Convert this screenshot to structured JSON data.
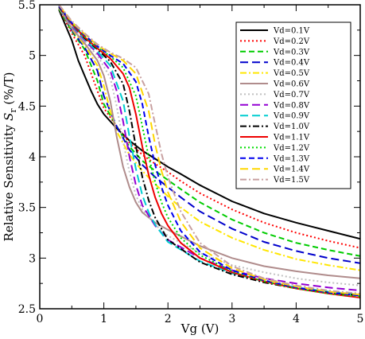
{
  "chart_data": {
    "type": "line",
    "title": "",
    "xlabel": "Vg (V)",
    "ylabel_main": "Relative Sensitivity ",
    "ylabel_symbol": "S",
    "ylabel_sub": "r",
    "ylabel_unit": " (%/T)",
    "xlim": [
      0,
      5
    ],
    "ylim": [
      2.5,
      5.5
    ],
    "xticks": [
      0,
      1,
      2,
      3,
      4,
      5
    ],
    "yticks": [
      2.5,
      3,
      3.5,
      4,
      4.5,
      5,
      5.5
    ],
    "xtick_labels": [
      "0",
      "1",
      "2",
      "3",
      "4",
      "5"
    ],
    "ytick_labels": [
      "2.5",
      "3",
      "3.5",
      "4",
      "4.5",
      "5",
      "5.5"
    ],
    "grid": false,
    "legend_position": "top-right",
    "series": [
      {
        "name": "Vd=0.1V",
        "color": "#000000",
        "dash": "solid",
        "points": [
          [
            0.3,
            5.45
          ],
          [
            0.4,
            5.3
          ],
          [
            0.5,
            5.15
          ],
          [
            0.6,
            4.95
          ],
          [
            0.7,
            4.8
          ],
          [
            0.8,
            4.65
          ],
          [
            0.9,
            4.52
          ],
          [
            1.0,
            4.42
          ],
          [
            1.2,
            4.28
          ],
          [
            1.4,
            4.16
          ],
          [
            1.6,
            4.06
          ],
          [
            1.8,
            3.98
          ],
          [
            2.0,
            3.9
          ],
          [
            2.2,
            3.83
          ],
          [
            2.5,
            3.72
          ],
          [
            3.0,
            3.56
          ],
          [
            3.5,
            3.44
          ],
          [
            4.0,
            3.35
          ],
          [
            4.5,
            3.27
          ],
          [
            5.0,
            3.19
          ]
        ]
      },
      {
        "name": "Vd=0.2V",
        "color": "#ff0000",
        "dash": "dotted",
        "points": [
          [
            0.3,
            5.46
          ],
          [
            0.5,
            5.22
          ],
          [
            0.7,
            5.0
          ],
          [
            0.9,
            4.65
          ],
          [
            1.0,
            4.48
          ],
          [
            1.2,
            4.3
          ],
          [
            1.4,
            4.14
          ],
          [
            1.6,
            4.02
          ],
          [
            1.8,
            3.93
          ],
          [
            2.0,
            3.85
          ],
          [
            2.2,
            3.76
          ],
          [
            2.5,
            3.64
          ],
          [
            3.0,
            3.48
          ],
          [
            3.5,
            3.35
          ],
          [
            4.0,
            3.25
          ],
          [
            4.5,
            3.17
          ],
          [
            5.0,
            3.1
          ]
        ]
      },
      {
        "name": "Vd=0.3V",
        "color": "#00cc00",
        "dash": "dashed",
        "points": [
          [
            0.3,
            5.46
          ],
          [
            0.5,
            5.24
          ],
          [
            0.7,
            5.06
          ],
          [
            0.9,
            4.75
          ],
          [
            1.0,
            4.52
          ],
          [
            1.2,
            4.3
          ],
          [
            1.4,
            4.1
          ],
          [
            1.6,
            3.96
          ],
          [
            1.8,
            3.86
          ],
          [
            2.0,
            3.77
          ],
          [
            2.2,
            3.68
          ],
          [
            2.5,
            3.55
          ],
          [
            3.0,
            3.38
          ],
          [
            3.5,
            3.25
          ],
          [
            4.0,
            3.15
          ],
          [
            4.5,
            3.08
          ],
          [
            5.0,
            3.02
          ]
        ]
      },
      {
        "name": "Vd=0.4V",
        "color": "#0000cc",
        "dash": "longdash",
        "points": [
          [
            0.3,
            5.47
          ],
          [
            0.5,
            5.25
          ],
          [
            0.7,
            5.08
          ],
          [
            0.9,
            4.85
          ],
          [
            1.0,
            4.6
          ],
          [
            1.2,
            4.3
          ],
          [
            1.4,
            4.07
          ],
          [
            1.6,
            3.92
          ],
          [
            1.8,
            3.8
          ],
          [
            2.0,
            3.7
          ],
          [
            2.2,
            3.6
          ],
          [
            2.5,
            3.46
          ],
          [
            3.0,
            3.29
          ],
          [
            3.5,
            3.16
          ],
          [
            4.0,
            3.07
          ],
          [
            4.5,
            3.0
          ],
          [
            5.0,
            2.95
          ]
        ]
      },
      {
        "name": "Vd=0.5V",
        "color": "#ffe600",
        "dash": "dashdot",
        "points": [
          [
            0.3,
            5.47
          ],
          [
            0.5,
            5.26
          ],
          [
            0.7,
            5.1
          ],
          [
            0.9,
            4.9
          ],
          [
            1.0,
            4.7
          ],
          [
            1.1,
            4.45
          ],
          [
            1.2,
            4.25
          ],
          [
            1.4,
            4.02
          ],
          [
            1.6,
            3.86
          ],
          [
            1.8,
            3.73
          ],
          [
            2.0,
            3.61
          ],
          [
            2.2,
            3.5
          ],
          [
            2.5,
            3.36
          ],
          [
            3.0,
            3.2
          ],
          [
            3.5,
            3.08
          ],
          [
            4.0,
            2.99
          ],
          [
            4.5,
            2.93
          ],
          [
            5.0,
            2.88
          ]
        ]
      },
      {
        "name": "Vd=0.6V",
        "color": "#b08c8c",
        "dash": "solid",
        "points": [
          [
            0.3,
            5.47
          ],
          [
            0.5,
            5.27
          ],
          [
            0.7,
            5.12
          ],
          [
            0.9,
            4.95
          ],
          [
            1.0,
            4.8
          ],
          [
            1.1,
            4.55
          ],
          [
            1.2,
            4.2
          ],
          [
            1.3,
            3.9
          ],
          [
            1.4,
            3.7
          ],
          [
            1.5,
            3.55
          ],
          [
            1.6,
            3.45
          ],
          [
            1.8,
            3.35
          ],
          [
            2.0,
            3.28
          ],
          [
            2.5,
            3.12
          ],
          [
            3.0,
            3.0
          ],
          [
            3.5,
            2.92
          ],
          [
            4.0,
            2.87
          ],
          [
            4.5,
            2.83
          ],
          [
            5.0,
            2.8
          ]
        ]
      },
      {
        "name": "Vd=0.7V",
        "color": "#c0c0c0",
        "dash": "dotted",
        "points": [
          [
            0.3,
            5.48
          ],
          [
            0.5,
            5.28
          ],
          [
            0.7,
            5.14
          ],
          [
            0.9,
            5.0
          ],
          [
            1.1,
            4.78
          ],
          [
            1.2,
            4.5
          ],
          [
            1.3,
            4.15
          ],
          [
            1.4,
            3.85
          ],
          [
            1.5,
            3.62
          ],
          [
            1.6,
            3.48
          ],
          [
            1.8,
            3.33
          ],
          [
            2.0,
            3.22
          ],
          [
            2.5,
            3.05
          ],
          [
            3.0,
            2.93
          ],
          [
            3.5,
            2.86
          ],
          [
            4.0,
            2.8
          ],
          [
            4.5,
            2.76
          ],
          [
            5.0,
            2.73
          ]
        ]
      },
      {
        "name": "Vd=0.8V",
        "color": "#9400d3",
        "dash": "longdash",
        "points": [
          [
            0.3,
            5.48
          ],
          [
            0.5,
            5.29
          ],
          [
            0.7,
            5.15
          ],
          [
            0.9,
            5.02
          ],
          [
            1.1,
            4.85
          ],
          [
            1.2,
            4.65
          ],
          [
            1.3,
            4.35
          ],
          [
            1.4,
            4.0
          ],
          [
            1.5,
            3.72
          ],
          [
            1.6,
            3.52
          ],
          [
            1.8,
            3.32
          ],
          [
            2.0,
            3.18
          ],
          [
            2.5,
            3.0
          ],
          [
            3.0,
            2.88
          ],
          [
            3.5,
            2.8
          ],
          [
            4.0,
            2.75
          ],
          [
            4.5,
            2.71
          ],
          [
            5.0,
            2.68
          ]
        ]
      },
      {
        "name": "Vd=0.9V",
        "color": "#00ced1",
        "dash": "longdash",
        "points": [
          [
            0.3,
            5.48
          ],
          [
            0.5,
            5.3
          ],
          [
            0.7,
            5.16
          ],
          [
            0.9,
            5.04
          ],
          [
            1.1,
            4.9
          ],
          [
            1.3,
            4.55
          ],
          [
            1.4,
            4.2
          ],
          [
            1.5,
            3.88
          ],
          [
            1.6,
            3.62
          ],
          [
            1.7,
            3.45
          ],
          [
            1.8,
            3.33
          ],
          [
            2.0,
            3.16
          ],
          [
            2.5,
            2.97
          ],
          [
            3.0,
            2.85
          ],
          [
            3.5,
            2.77
          ],
          [
            4.0,
            2.71
          ],
          [
            4.5,
            2.67
          ],
          [
            5.0,
            2.64
          ]
        ]
      },
      {
        "name": "Vd=1.0V",
        "color": "#000000",
        "dash": "dashdot",
        "points": [
          [
            0.3,
            5.48
          ],
          [
            0.5,
            5.31
          ],
          [
            0.7,
            5.17
          ],
          [
            0.9,
            5.06
          ],
          [
            1.1,
            4.94
          ],
          [
            1.3,
            4.72
          ],
          [
            1.4,
            4.45
          ],
          [
            1.5,
            4.1
          ],
          [
            1.6,
            3.8
          ],
          [
            1.7,
            3.57
          ],
          [
            1.8,
            3.4
          ],
          [
            2.0,
            3.18
          ],
          [
            2.5,
            2.96
          ],
          [
            3.0,
            2.84
          ],
          [
            3.5,
            2.76
          ],
          [
            4.0,
            2.7
          ],
          [
            4.5,
            2.66
          ],
          [
            5.0,
            2.63
          ]
        ]
      },
      {
        "name": "Vd=1.1V",
        "color": "#ee0000",
        "dash": "solid",
        "points": [
          [
            0.3,
            5.49
          ],
          [
            0.5,
            5.31
          ],
          [
            0.7,
            5.18
          ],
          [
            0.9,
            5.07
          ],
          [
            1.1,
            4.97
          ],
          [
            1.3,
            4.82
          ],
          [
            1.4,
            4.68
          ],
          [
            1.5,
            4.42
          ],
          [
            1.6,
            4.1
          ],
          [
            1.7,
            3.82
          ],
          [
            1.8,
            3.6
          ],
          [
            1.9,
            3.44
          ],
          [
            2.0,
            3.32
          ],
          [
            2.2,
            3.15
          ],
          [
            2.5,
            3.0
          ],
          [
            3.0,
            2.86
          ],
          [
            3.5,
            2.77
          ],
          [
            4.0,
            2.7
          ],
          [
            4.5,
            2.65
          ],
          [
            5.0,
            2.61
          ]
        ]
      },
      {
        "name": "Vd=1.2V",
        "color": "#00dd00",
        "dash": "dotted",
        "points": [
          [
            0.3,
            5.49
          ],
          [
            0.5,
            5.32
          ],
          [
            0.7,
            5.19
          ],
          [
            0.9,
            5.08
          ],
          [
            1.1,
            4.99
          ],
          [
            1.3,
            4.88
          ],
          [
            1.5,
            4.6
          ],
          [
            1.6,
            4.3
          ],
          [
            1.7,
            4.0
          ],
          [
            1.8,
            3.75
          ],
          [
            1.9,
            3.55
          ],
          [
            2.0,
            3.4
          ],
          [
            2.2,
            3.2
          ],
          [
            2.5,
            3.03
          ],
          [
            3.0,
            2.87
          ],
          [
            3.5,
            2.77
          ],
          [
            4.0,
            2.7
          ],
          [
            4.5,
            2.65
          ],
          [
            5.0,
            2.62
          ]
        ]
      },
      {
        "name": "Vd=1.3V",
        "color": "#0000ee",
        "dash": "dashed",
        "points": [
          [
            0.3,
            5.49
          ],
          [
            0.5,
            5.32
          ],
          [
            0.7,
            5.2
          ],
          [
            0.9,
            5.09
          ],
          [
            1.1,
            5.0
          ],
          [
            1.3,
            4.92
          ],
          [
            1.5,
            4.74
          ],
          [
            1.6,
            4.52
          ],
          [
            1.7,
            4.2
          ],
          [
            1.8,
            3.92
          ],
          [
            1.9,
            3.7
          ],
          [
            2.0,
            3.52
          ],
          [
            2.2,
            3.27
          ],
          [
            2.5,
            3.06
          ],
          [
            3.0,
            2.88
          ],
          [
            3.5,
            2.78
          ],
          [
            4.0,
            2.71
          ],
          [
            4.5,
            2.66
          ],
          [
            5.0,
            2.63
          ]
        ]
      },
      {
        "name": "Vd=1.4V",
        "color": "#ffd700",
        "dash": "longdash",
        "points": [
          [
            0.3,
            5.5
          ],
          [
            0.5,
            5.33
          ],
          [
            0.7,
            5.21
          ],
          [
            0.9,
            5.1
          ],
          [
            1.1,
            5.02
          ],
          [
            1.3,
            4.95
          ],
          [
            1.5,
            4.82
          ],
          [
            1.7,
            4.45
          ],
          [
            1.8,
            4.12
          ],
          [
            1.9,
            3.86
          ],
          [
            2.0,
            3.65
          ],
          [
            2.2,
            3.36
          ],
          [
            2.5,
            3.1
          ],
          [
            3.0,
            2.9
          ],
          [
            3.5,
            2.79
          ],
          [
            4.0,
            2.72
          ],
          [
            4.5,
            2.67
          ],
          [
            5.0,
            2.64
          ]
        ]
      },
      {
        "name": "Vd=1.5V",
        "color": "#c8a0a0",
        "dash": "dashdot",
        "points": [
          [
            0.3,
            5.5
          ],
          [
            0.5,
            5.34
          ],
          [
            0.7,
            5.22
          ],
          [
            0.9,
            5.11
          ],
          [
            1.1,
            5.03
          ],
          [
            1.3,
            4.97
          ],
          [
            1.5,
            4.88
          ],
          [
            1.7,
            4.62
          ],
          [
            1.8,
            4.32
          ],
          [
            1.9,
            4.03
          ],
          [
            2.0,
            3.8
          ],
          [
            2.2,
            3.46
          ],
          [
            2.5,
            3.15
          ],
          [
            3.0,
            2.92
          ],
          [
            3.5,
            2.8
          ],
          [
            4.0,
            2.73
          ],
          [
            4.5,
            2.68
          ],
          [
            5.0,
            2.65
          ]
        ]
      }
    ]
  }
}
